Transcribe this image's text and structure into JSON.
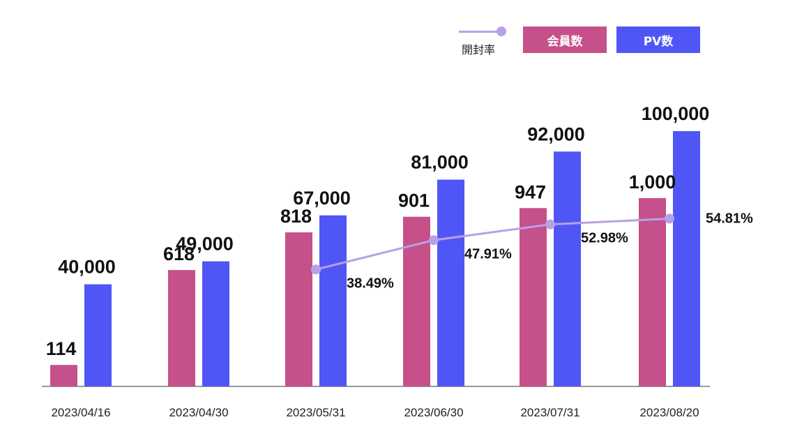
{
  "legend": {
    "rate": "開封率",
    "members": "会員数",
    "pv": "PV数"
  },
  "colors": {
    "members": "#c6508a",
    "pv": "#5056f6",
    "rate": "#b8a0e6",
    "axis": "#999999"
  },
  "chart_data": {
    "type": "bar",
    "categories": [
      "2023/04/16",
      "2023/04/30",
      "2023/05/31",
      "2023/06/30",
      "2023/07/31",
      "2023/08/20"
    ],
    "series": [
      {
        "name": "会員数",
        "values": [
          114,
          618,
          818,
          901,
          947,
          1000
        ],
        "labels": [
          "114",
          "618",
          "818",
          "901",
          "947",
          "1,000"
        ]
      },
      {
        "name": "PV数",
        "values": [
          40000,
          49000,
          67000,
          81000,
          92000,
          100000
        ],
        "labels": [
          "40,000",
          "49,000",
          "67,000",
          "81,000",
          "92,000",
          "100,000"
        ]
      },
      {
        "name": "開封率",
        "type": "line",
        "values": [
          null,
          null,
          38.49,
          47.91,
          52.98,
          54.81
        ],
        "labels": [
          null,
          null,
          "38.49%",
          "47.91%",
          "52.98%",
          "54.81%"
        ]
      }
    ],
    "legend_position": "top-right",
    "grid": false
  }
}
